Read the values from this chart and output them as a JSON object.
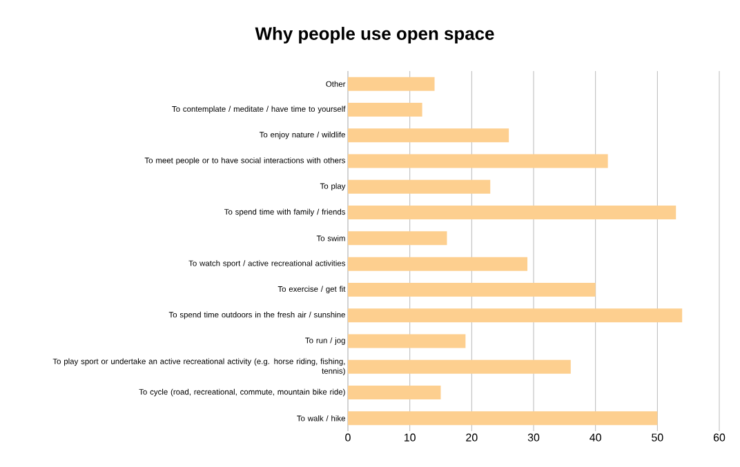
{
  "chart_data": {
    "type": "bar",
    "orientation": "horizontal",
    "title": "Why people use open space",
    "categories": [
      "Other",
      "To contemplate / meditate / have time to yourself",
      "To enjoy nature / wildlife",
      "To meet people or to have social interactions with others",
      "To play",
      "To spend time with family / friends",
      "To swim",
      "To watch sport / active recreational activities",
      "To exercise / get fit",
      "To spend time outdoors in the fresh air / sunshine",
      "To run / jog",
      "To play sport or undertake an active recreational activity (e.g. horse riding, fishing, tennis)",
      "To cycle (road, recreational, commute, mountain bike ride)",
      "To walk / hike"
    ],
    "values": [
      14,
      12,
      26,
      42,
      23,
      53,
      16,
      29,
      40,
      54,
      19,
      36,
      15,
      50
    ],
    "color": "#fdcf8f",
    "xlim": [
      0,
      60
    ],
    "xticks": [
      0,
      10,
      20,
      30,
      40,
      50,
      60
    ],
    "grid": "x"
  }
}
